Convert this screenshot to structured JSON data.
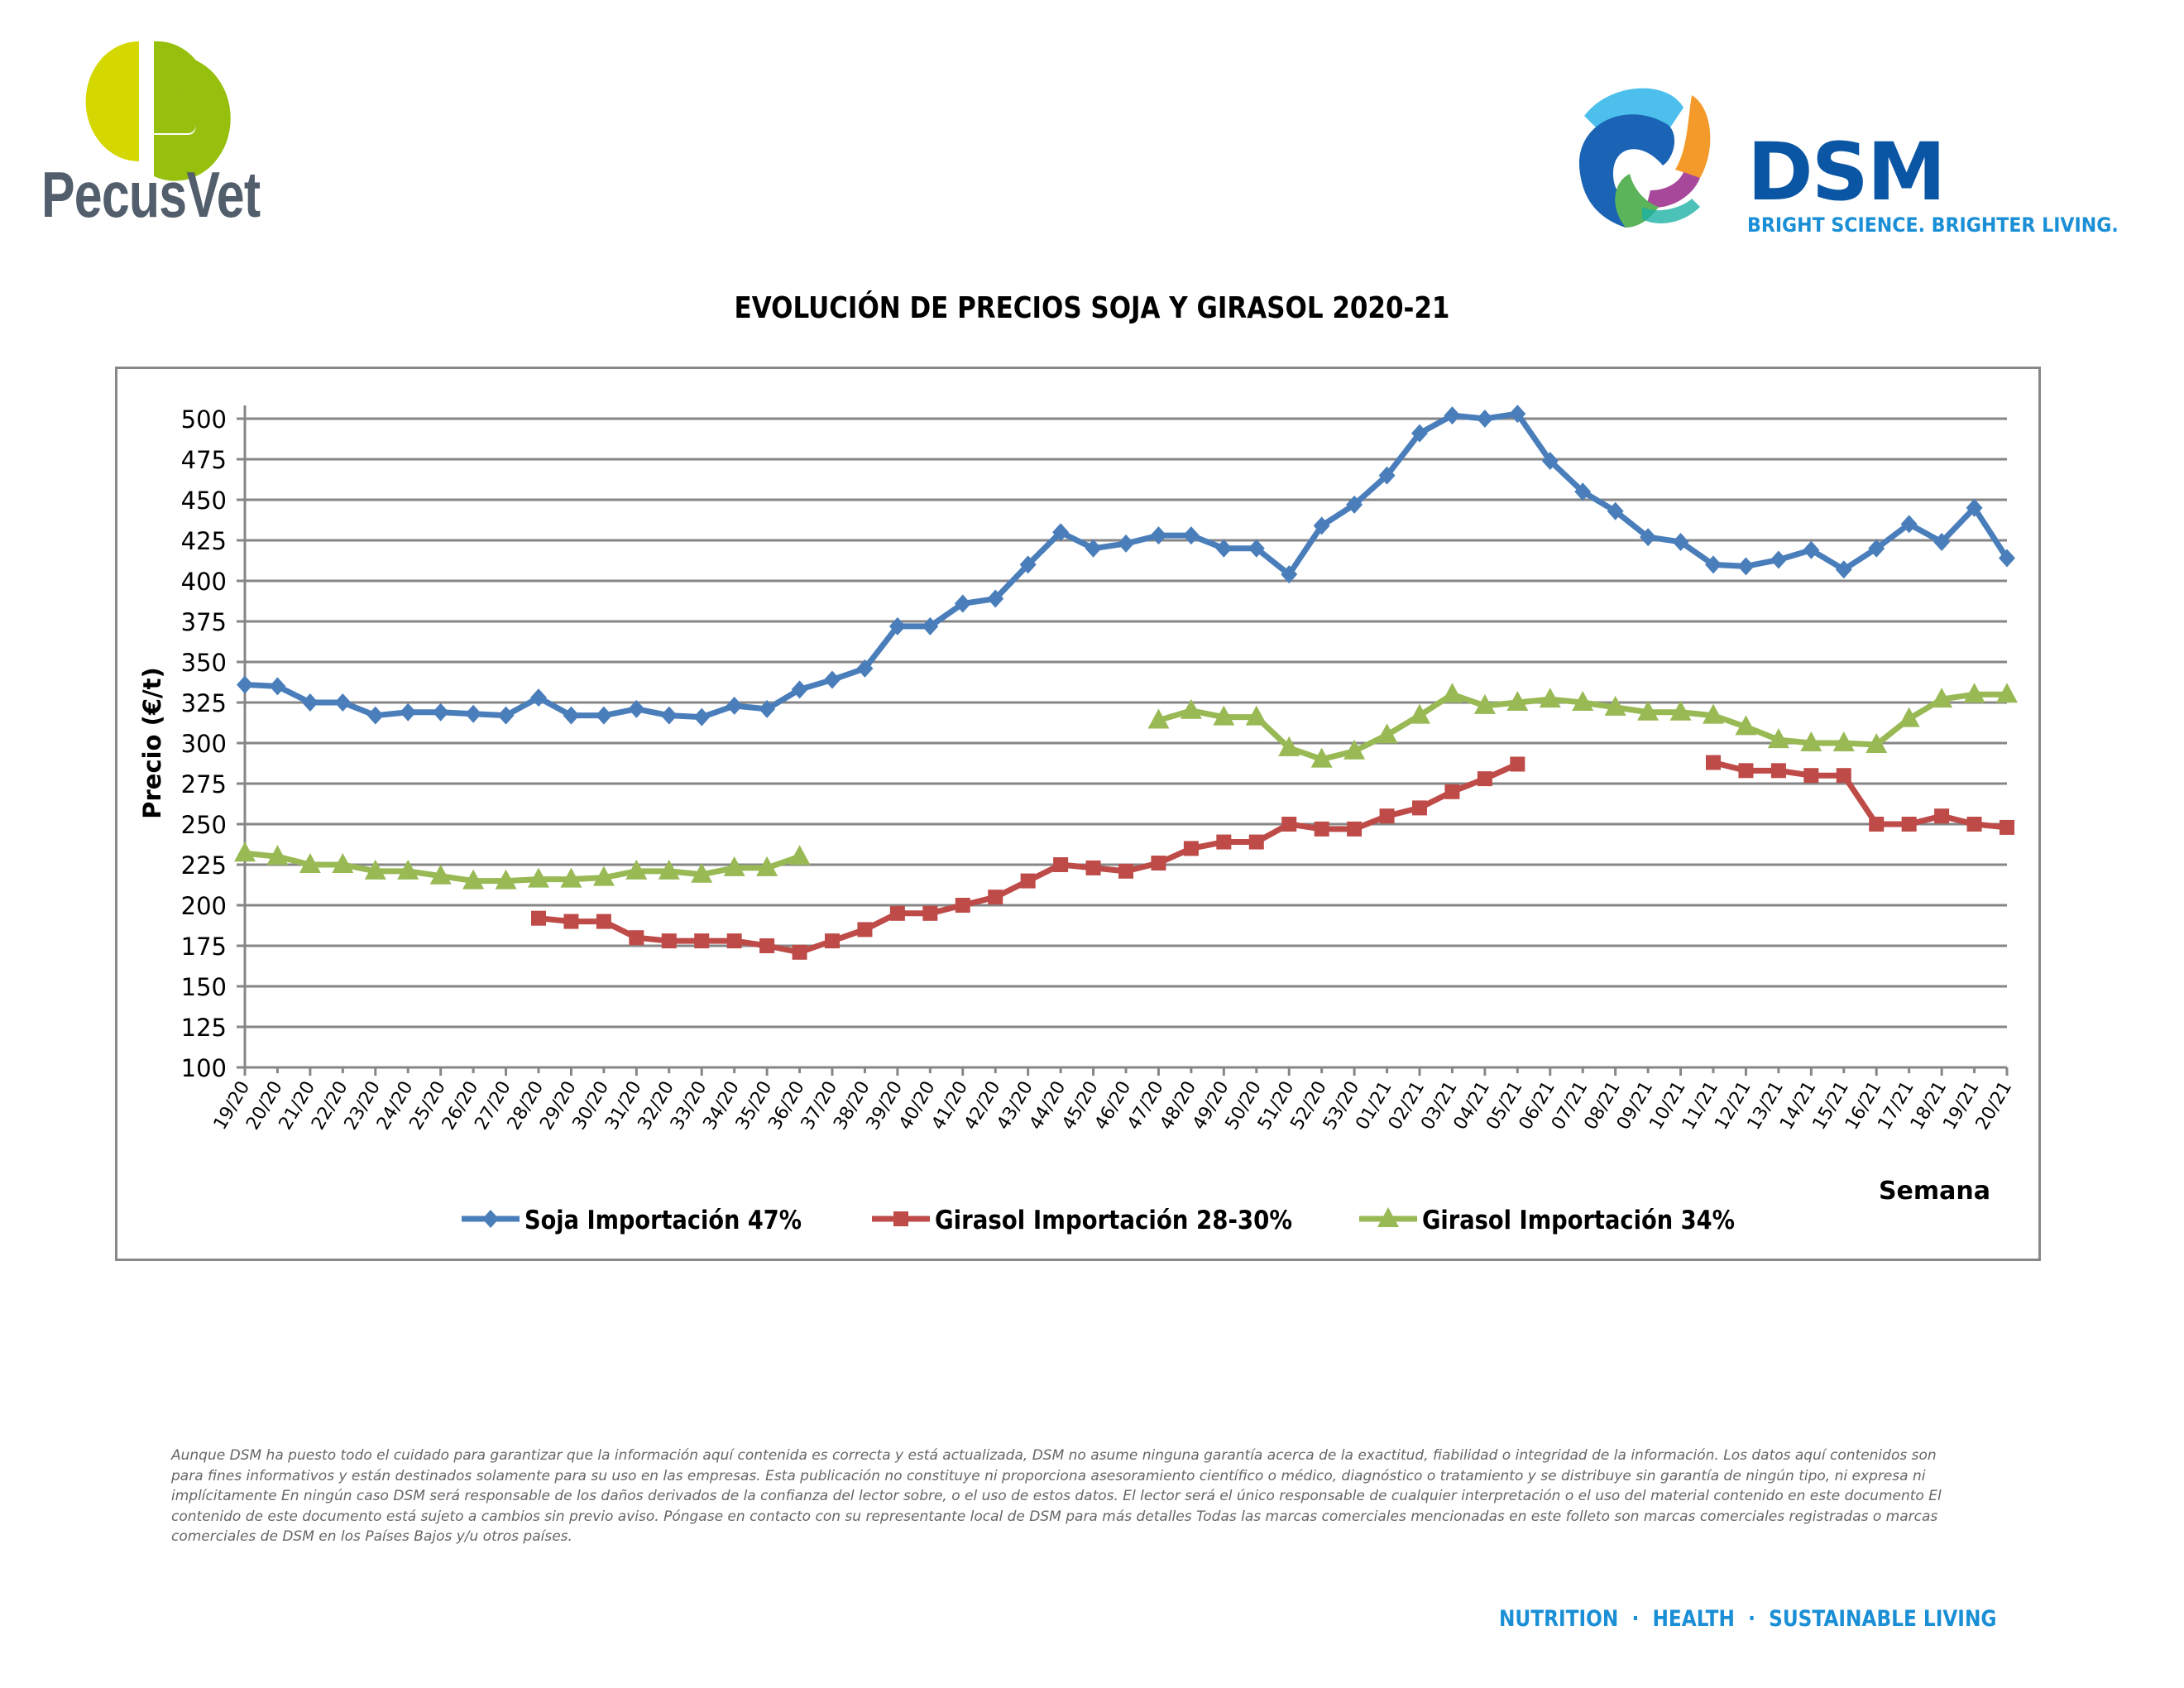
{
  "header": {
    "left_logo": {
      "name": "PecusVet",
      "letter": "P"
    },
    "right_logo": {
      "name": "DSM",
      "tagline": "BRIGHT SCIENCE. BRIGHTER LIVING."
    }
  },
  "footer": {
    "disclaimer": "Aunque DSM ha puesto todo el cuidado para garantizar que la información aquí contenida es correcta y está actualizada, DSM no asume ninguna garantía acerca de la exactitud, fiabilidad o integridad de la información. Los datos aquí contenidos son para fines informativos y están destinados solamente para su uso en las empresas. Esta publicación no constituye ni proporciona asesoramiento científico o médico, diagnóstico o tratamiento y se distribuye sin garantía de ningún tipo, ni expresa ni implícitamente En ningún caso DSM será responsable de los daños derivados de la confianza del lector sobre, o el uso de estos datos. El lector será el único responsable de cualquier interpretación o el uso del material contenido en este documento El contenido de este documento está sujeto a cambios sin previo aviso. Póngase en contacto con su representante local de DSM para más detalles Todas las marcas comerciales mencionadas en este folleto son marcas comerciales registradas o marcas comerciales de DSM en los Países Bajos y/u otros países.",
    "tagline": "NUTRITION  ·  HEALTH  ·  SUSTAINABLE LIVING"
  },
  "colors": {
    "soja": "#4a7ebb",
    "girasol_28_30": "#be4b48",
    "girasol_34": "#98b954",
    "grid": "#868686",
    "pecusvet_green_light": "#d4d800",
    "pecusvet_green": "#97bf0d",
    "pecusvet_gray": "#525e6c",
    "dsm_blue": "#0a56a4",
    "dsm_light_blue": "#1a8fd6"
  },
  "chart_data": {
    "type": "line",
    "title": "EVOLUCIÓN DE PRECIOS SOJA Y GIRASOL 2020-21",
    "xlabel": "Semana",
    "ylabel": "Precio (€/t)",
    "ylim": [
      100,
      500
    ],
    "yticks": [
      100,
      125,
      150,
      175,
      200,
      225,
      250,
      275,
      300,
      325,
      350,
      375,
      400,
      425,
      450,
      475,
      500
    ],
    "grid": true,
    "legend_position": "bottom",
    "categories": [
      "19/20",
      "20/20",
      "21/20",
      "22/20",
      "23/20",
      "24/20",
      "25/20",
      "26/20",
      "27/20",
      "28/20",
      "29/20",
      "30/20",
      "31/20",
      "32/20",
      "33/20",
      "34/20",
      "35/20",
      "36/20",
      "37/20",
      "38/20",
      "39/20",
      "40/20",
      "41/20",
      "42/20",
      "43/20",
      "44/20",
      "45/20",
      "46/20",
      "47/20",
      "48/20",
      "49/20",
      "50/20",
      "51/20",
      "52/20",
      "53/20",
      "01/21",
      "02/21",
      "03/21",
      "04/21",
      "05/21",
      "06/21",
      "07/21",
      "08/21",
      "09/21",
      "10/21",
      "11/21",
      "12/21",
      "13/21",
      "14/21",
      "15/21",
      "16/21",
      "17/21",
      "18/21",
      "19/21",
      "20/21"
    ],
    "series": [
      {
        "name": "Soja Importación 47%",
        "marker": "diamond",
        "color": "#4a7ebb",
        "values": [
          336,
          335,
          325,
          325,
          317,
          319,
          319,
          318,
          317,
          328,
          317,
          317,
          321,
          317,
          316,
          323,
          321,
          333,
          339,
          346,
          372,
          372,
          386,
          389,
          410,
          430,
          420,
          423,
          428,
          428,
          420,
          420,
          404,
          434,
          447,
          465,
          491,
          502,
          500,
          503,
          474,
          455,
          443,
          427,
          424,
          410,
          409,
          413,
          419,
          407,
          420,
          435,
          424,
          445,
          414
        ]
      },
      {
        "name": "Girasol Importación 28-30%",
        "marker": "square",
        "color": "#be4b48",
        "values": [
          null,
          null,
          null,
          null,
          null,
          null,
          null,
          null,
          null,
          192,
          190,
          190,
          180,
          178,
          178,
          178,
          175,
          171,
          178,
          185,
          195,
          195,
          200,
          205,
          215,
          225,
          223,
          221,
          226,
          235,
          239,
          239,
          250,
          247,
          247,
          255,
          260,
          270,
          278,
          287,
          null,
          null,
          null,
          null,
          null,
          288,
          283,
          283,
          280,
          280,
          250,
          250,
          255,
          250,
          248
        ]
      },
      {
        "name": "Girasol Importación 34%",
        "marker": "triangle",
        "color": "#98b954",
        "values": [
          232,
          230,
          225,
          225,
          221,
          221,
          218,
          215,
          215,
          216,
          216,
          217,
          221,
          221,
          219,
          223,
          223,
          230,
          null,
          null,
          null,
          null,
          null,
          null,
          null,
          null,
          null,
          null,
          314,
          320,
          316,
          316,
          297,
          290,
          295,
          305,
          317,
          330,
          323,
          325,
          327,
          325,
          322,
          319,
          319,
          317,
          310,
          302,
          300,
          300,
          299,
          315,
          327,
          330,
          330
        ]
      }
    ]
  }
}
